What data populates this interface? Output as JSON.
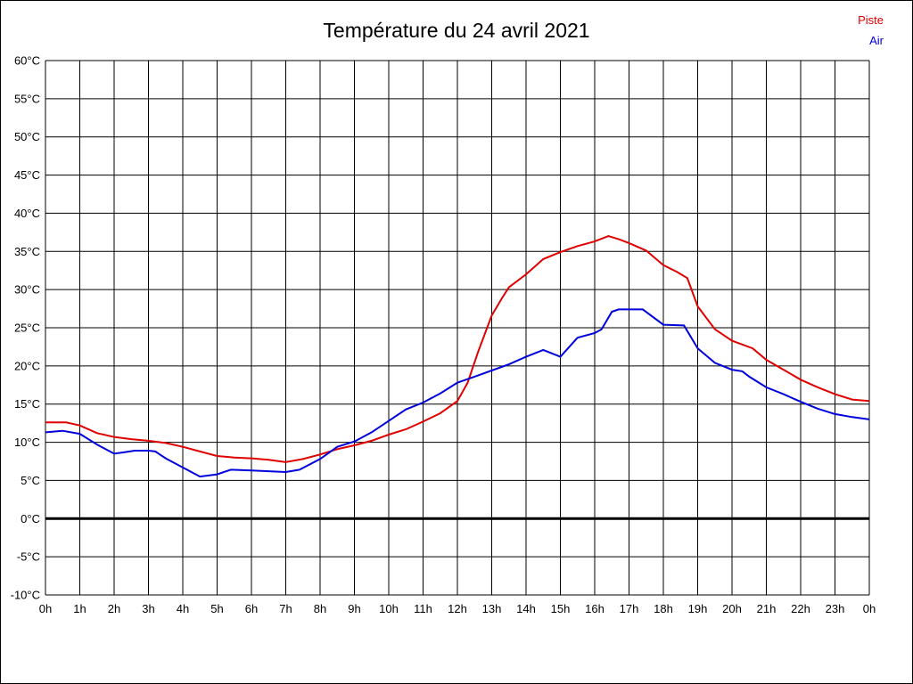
{
  "title": "Température du 24 avril 2021",
  "legend": [
    {
      "label": "Piste",
      "color": "#e00000"
    },
    {
      "label": "Air",
      "color": "#0000dd"
    }
  ],
  "chart_data": {
    "type": "line",
    "title": "Température du 24 avril 2021",
    "xlabel": "",
    "ylabel": "",
    "xlim": [
      0,
      24
    ],
    "ylim": [
      -10,
      60
    ],
    "grid": true,
    "zero_line": true,
    "legend_position": "top-right",
    "grid_color": "#000000",
    "zero_line_color": "#000000",
    "x_ticks": [
      {
        "v": 0,
        "label": "0h"
      },
      {
        "v": 1,
        "label": "1h"
      },
      {
        "v": 2,
        "label": "2h"
      },
      {
        "v": 3,
        "label": "3h"
      },
      {
        "v": 4,
        "label": "4h"
      },
      {
        "v": 5,
        "label": "5h"
      },
      {
        "v": 6,
        "label": "6h"
      },
      {
        "v": 7,
        "label": "7h"
      },
      {
        "v": 8,
        "label": "8h"
      },
      {
        "v": 9,
        "label": "9h"
      },
      {
        "v": 10,
        "label": "10h"
      },
      {
        "v": 11,
        "label": "11h"
      },
      {
        "v": 12,
        "label": "12h"
      },
      {
        "v": 13,
        "label": "13h"
      },
      {
        "v": 14,
        "label": "14h"
      },
      {
        "v": 15,
        "label": "15h"
      },
      {
        "v": 16,
        "label": "16h"
      },
      {
        "v": 17,
        "label": "17h"
      },
      {
        "v": 18,
        "label": "18h"
      },
      {
        "v": 19,
        "label": "19h"
      },
      {
        "v": 20,
        "label": "20h"
      },
      {
        "v": 21,
        "label": "21h"
      },
      {
        "v": 22,
        "label": "22h"
      },
      {
        "v": 23,
        "label": "23h"
      },
      {
        "v": 24,
        "label": "0h"
      }
    ],
    "y_ticks": [
      {
        "v": 60,
        "label": "60°C"
      },
      {
        "v": 55,
        "label": "55°C"
      },
      {
        "v": 50,
        "label": "50°C"
      },
      {
        "v": 45,
        "label": "45°C"
      },
      {
        "v": 40,
        "label": "40°C"
      },
      {
        "v": 35,
        "label": "35°C"
      },
      {
        "v": 30,
        "label": "30°C"
      },
      {
        "v": 25,
        "label": "25°C"
      },
      {
        "v": 20,
        "label": "20°C"
      },
      {
        "v": 15,
        "label": "15°C"
      },
      {
        "v": 10,
        "label": "10°C"
      },
      {
        "v": 5,
        "label": "5°C"
      },
      {
        "v": 0,
        "label": "0°C"
      },
      {
        "v": -5,
        "label": "-5°C"
      },
      {
        "v": -10,
        "label": "-10°C"
      }
    ],
    "series": [
      {
        "name": "Piste",
        "color": "#e00000",
        "points": [
          [
            0,
            12.6
          ],
          [
            0.6,
            12.6
          ],
          [
            1,
            12.2
          ],
          [
            1.5,
            11.2
          ],
          [
            2,
            10.7
          ],
          [
            2.5,
            10.4
          ],
          [
            3,
            10.2
          ],
          [
            3.5,
            9.9
          ],
          [
            4,
            9.4
          ],
          [
            4.5,
            8.8
          ],
          [
            5,
            8.2
          ],
          [
            5.5,
            8.0
          ],
          [
            6,
            7.9
          ],
          [
            6.5,
            7.7
          ],
          [
            7,
            7.4
          ],
          [
            7.5,
            7.8
          ],
          [
            8,
            8.4
          ],
          [
            8.5,
            9.1
          ],
          [
            9,
            9.6
          ],
          [
            9.5,
            10.2
          ],
          [
            10,
            11.0
          ],
          [
            10.5,
            11.7
          ],
          [
            11,
            12.7
          ],
          [
            11.5,
            13.8
          ],
          [
            12,
            15.4
          ],
          [
            12.3,
            17.8
          ],
          [
            12.6,
            21.8
          ],
          [
            13,
            26.6
          ],
          [
            13.3,
            28.9
          ],
          [
            13.5,
            30.3
          ],
          [
            14,
            32.0
          ],
          [
            14.5,
            34.0
          ],
          [
            15,
            34.9
          ],
          [
            15.5,
            35.7
          ],
          [
            16,
            36.3
          ],
          [
            16.4,
            37.0
          ],
          [
            16.7,
            36.6
          ],
          [
            17,
            36.1
          ],
          [
            17.5,
            35.1
          ],
          [
            18,
            33.2
          ],
          [
            18.4,
            32.3
          ],
          [
            18.7,
            31.5
          ],
          [
            19,
            27.8
          ],
          [
            19.5,
            24.8
          ],
          [
            20,
            23.3
          ],
          [
            20.6,
            22.3
          ],
          [
            21,
            20.8
          ],
          [
            21.5,
            19.5
          ],
          [
            22,
            18.2
          ],
          [
            22.5,
            17.2
          ],
          [
            23,
            16.3
          ],
          [
            23.5,
            15.6
          ],
          [
            24,
            15.4
          ]
        ]
      },
      {
        "name": "Air",
        "color": "#0000dd",
        "points": [
          [
            0,
            11.3
          ],
          [
            0.5,
            11.5
          ],
          [
            1,
            11.1
          ],
          [
            1.5,
            9.7
          ],
          [
            2,
            8.5
          ],
          [
            2.3,
            8.7
          ],
          [
            2.6,
            8.9
          ],
          [
            3,
            8.9
          ],
          [
            3.2,
            8.8
          ],
          [
            3.5,
            7.9
          ],
          [
            4,
            6.7
          ],
          [
            4.5,
            5.5
          ],
          [
            5,
            5.8
          ],
          [
            5.4,
            6.4
          ],
          [
            6,
            6.3
          ],
          [
            6.5,
            6.2
          ],
          [
            7,
            6.1
          ],
          [
            7.4,
            6.4
          ],
          [
            8,
            7.8
          ],
          [
            8.5,
            9.4
          ],
          [
            9,
            10.1
          ],
          [
            9.5,
            11.3
          ],
          [
            10,
            12.8
          ],
          [
            10.5,
            14.3
          ],
          [
            11,
            15.2
          ],
          [
            11.5,
            16.4
          ],
          [
            12,
            17.8
          ],
          [
            12.5,
            18.6
          ],
          [
            13,
            19.4
          ],
          [
            13.5,
            20.2
          ],
          [
            14,
            21.2
          ],
          [
            14.5,
            22.1
          ],
          [
            15,
            21.2
          ],
          [
            15.5,
            23.7
          ],
          [
            16,
            24.3
          ],
          [
            16.2,
            24.8
          ],
          [
            16.5,
            27.1
          ],
          [
            16.7,
            27.4
          ],
          [
            17.4,
            27.4
          ],
          [
            18,
            25.4
          ],
          [
            18.6,
            25.3
          ],
          [
            19,
            22.3
          ],
          [
            19.5,
            20.4
          ],
          [
            20,
            19.5
          ],
          [
            20.3,
            19.3
          ],
          [
            20.5,
            18.6
          ],
          [
            21,
            17.2
          ],
          [
            21.5,
            16.3
          ],
          [
            22,
            15.3
          ],
          [
            22.5,
            14.4
          ],
          [
            23,
            13.7
          ],
          [
            23.5,
            13.3
          ],
          [
            24,
            13.0
          ]
        ]
      }
    ]
  }
}
